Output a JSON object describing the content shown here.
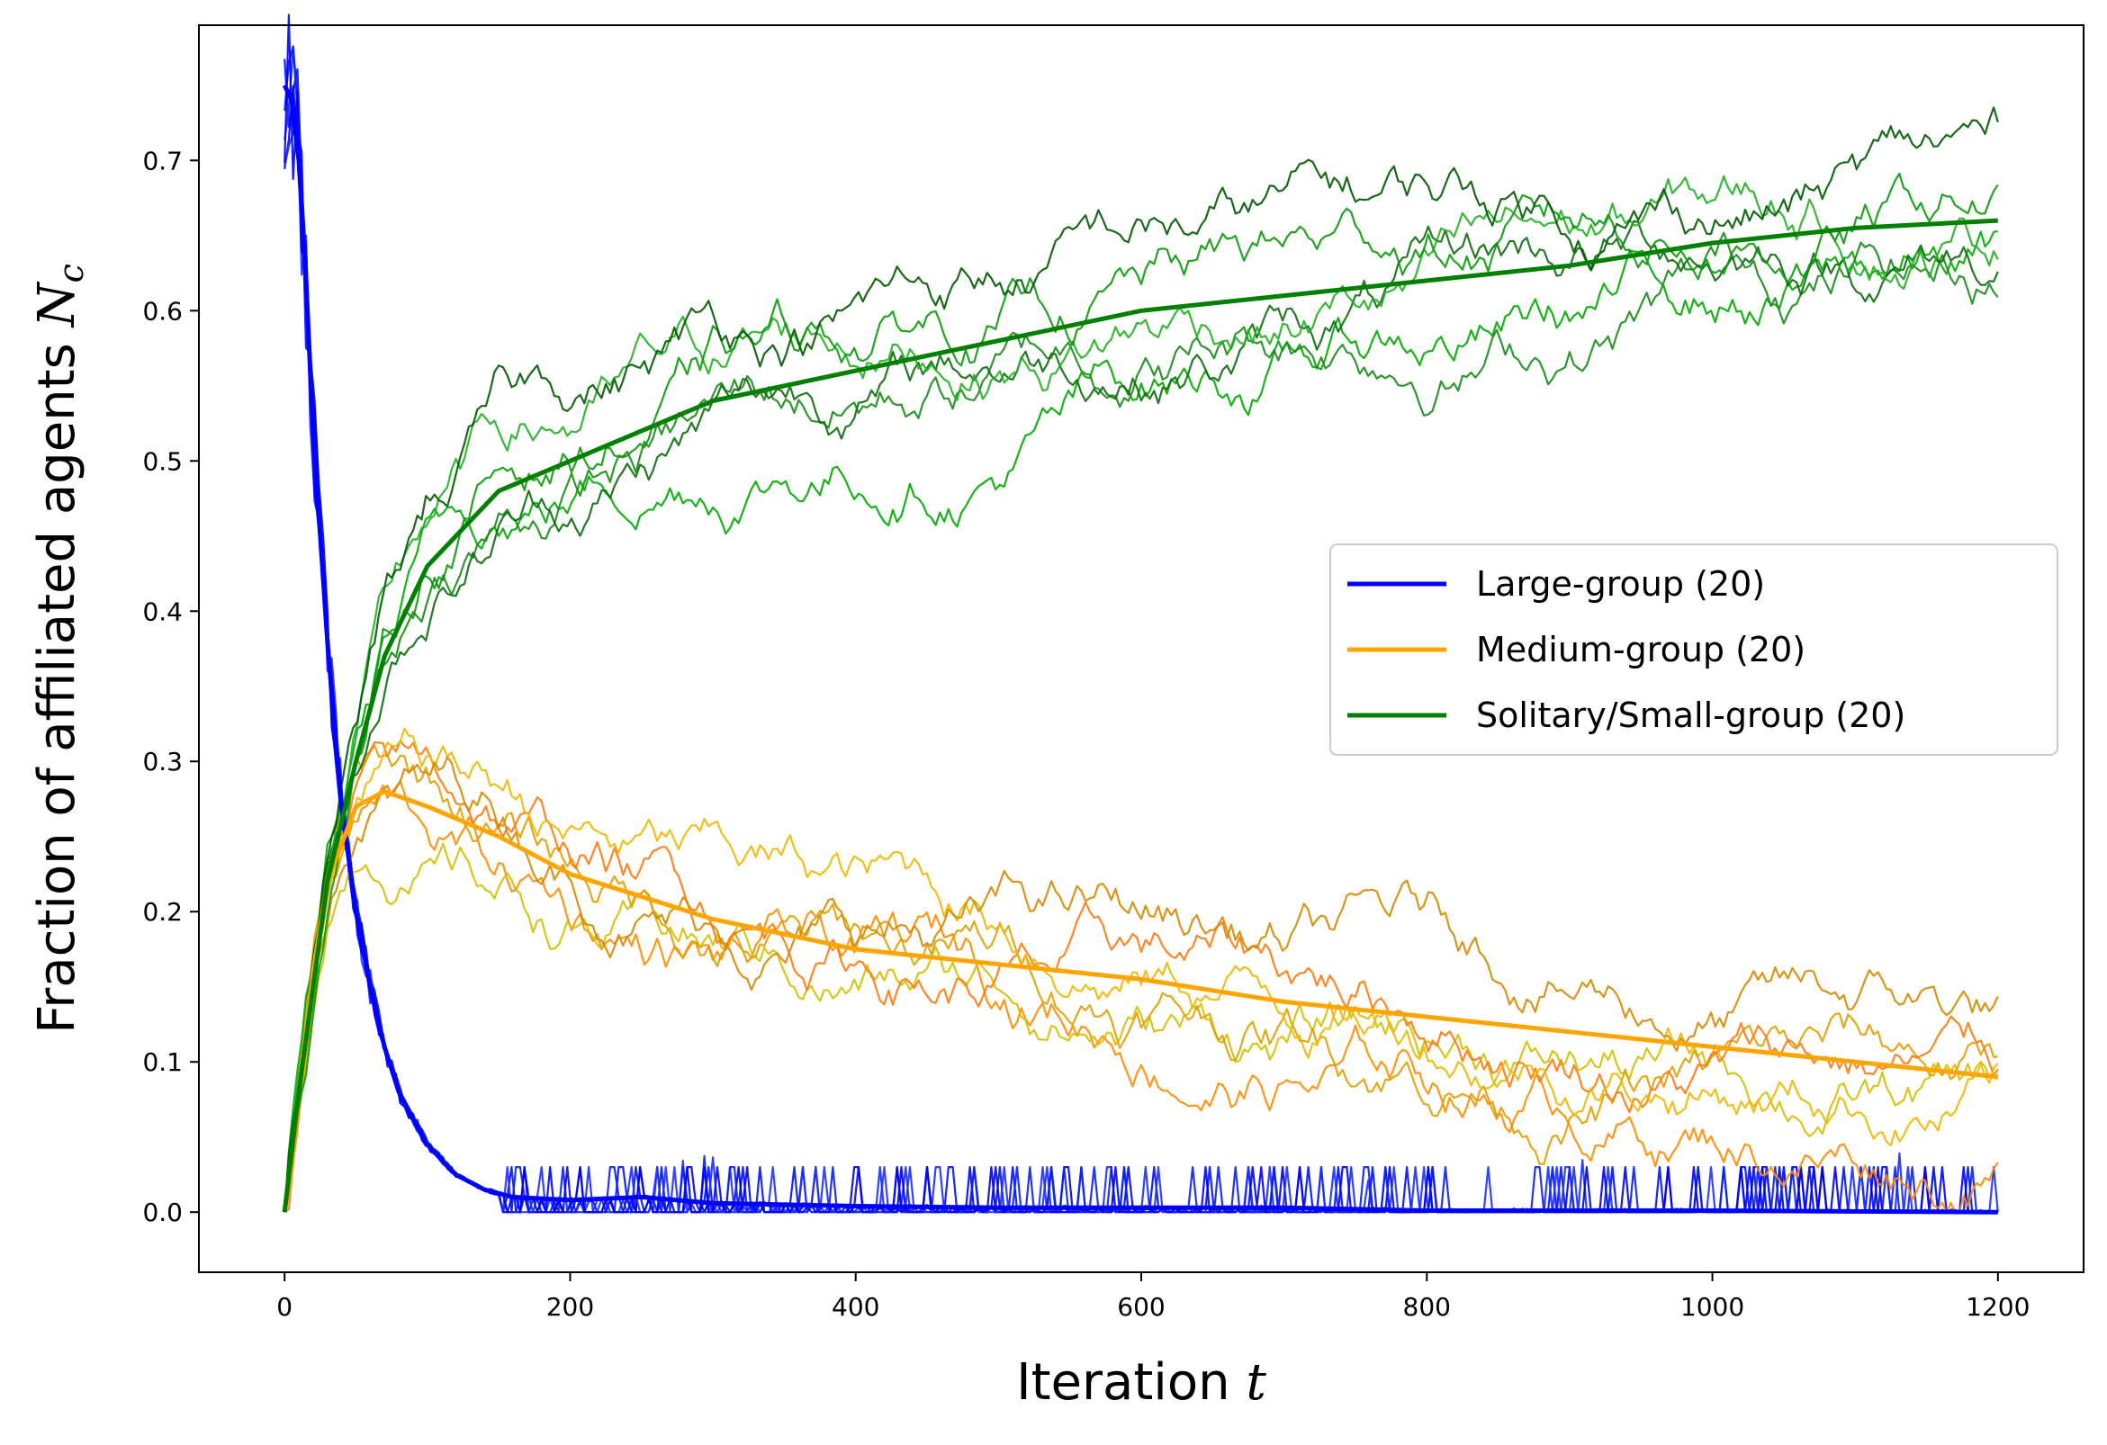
{
  "chart_data": {
    "type": "line",
    "xlabel": "Iteration",
    "xlabel_symbol": "t",
    "ylabel": "Fraction of affiliated agents",
    "ylabel_symbol": "N",
    "ylabel_symbol_sub": "c",
    "xlim": [
      -60,
      1260
    ],
    "ylim": [
      -0.04,
      0.79
    ],
    "x_ticks": [
      0,
      200,
      400,
      600,
      800,
      1000,
      1200
    ],
    "x_tick_labels": [
      "0",
      "200",
      "400",
      "600",
      "800",
      "1000",
      "1200"
    ],
    "y_ticks": [
      0.0,
      0.1,
      0.2,
      0.3,
      0.4,
      0.5,
      0.6,
      0.7
    ],
    "y_tick_labels": [
      "0.0",
      "0.1",
      "0.2",
      "0.3",
      "0.4",
      "0.5",
      "0.6",
      "0.7"
    ],
    "grid": false,
    "legend_position": "center-right",
    "legend": [
      {
        "label": "Large-group (20)",
        "color": "#0000ff"
      },
      {
        "label": "Medium-group (20)",
        "color": "#ffa500"
      },
      {
        "label": "Solitary/Small-group (20)",
        "color": "#008000"
      }
    ],
    "groups": [
      {
        "name": "Large-group (20)",
        "mean_color": "#0000ff",
        "run_colors": [
          "#0010ff",
          "#1a2cff",
          "#0000e6",
          "#2030ff",
          "#0a20f0",
          "#0000ff"
        ],
        "mean": {
          "x": [
            0,
            5,
            10,
            15,
            20,
            30,
            40,
            50,
            60,
            70,
            80,
            100,
            120,
            140,
            160,
            200,
            250,
            300,
            400,
            500,
            600,
            700,
            800,
            1000,
            1200
          ],
          "y": [
            0.75,
            0.74,
            0.7,
            0.62,
            0.52,
            0.38,
            0.27,
            0.2,
            0.15,
            0.11,
            0.08,
            0.045,
            0.025,
            0.015,
            0.01,
            0.008,
            0.01,
            0.006,
            0.004,
            0.003,
            0.003,
            0.003,
            0.001,
            0.001,
            0.0
          ]
        }
      },
      {
        "name": "Medium-group (20)",
        "mean_color": "#ffa500",
        "run_colors": [
          "#ff8c00",
          "#d4c000",
          "#e0a000",
          "#ff7a10",
          "#f0b800",
          "#d48a00"
        ],
        "mean": {
          "x": [
            0,
            5,
            10,
            20,
            30,
            50,
            70,
            100,
            150,
            200,
            300,
            400,
            500,
            600,
            700,
            800,
            900,
            1000,
            1100,
            1200
          ],
          "y": [
            0.0,
            0.03,
            0.08,
            0.16,
            0.22,
            0.27,
            0.28,
            0.27,
            0.25,
            0.225,
            0.195,
            0.175,
            0.165,
            0.155,
            0.14,
            0.13,
            0.12,
            0.11,
            0.1,
            0.09
          ]
        }
      },
      {
        "name": "Solitary/Small-group (20)",
        "mean_color": "#008000",
        "run_colors": [
          "#00aa00",
          "#1a8c1a",
          "#0d6b0d",
          "#22b022",
          "#0a9a0a",
          "#005a00"
        ],
        "mean": {
          "x": [
            0,
            10,
            20,
            30,
            50,
            70,
            100,
            150,
            200,
            300,
            400,
            500,
            600,
            700,
            800,
            900,
            1000,
            1100,
            1200
          ],
          "y": [
            0.0,
            0.08,
            0.15,
            0.22,
            0.3,
            0.37,
            0.43,
            0.48,
            0.5,
            0.54,
            0.56,
            0.58,
            0.6,
            0.61,
            0.62,
            0.63,
            0.645,
            0.655,
            0.66
          ]
        }
      }
    ]
  }
}
